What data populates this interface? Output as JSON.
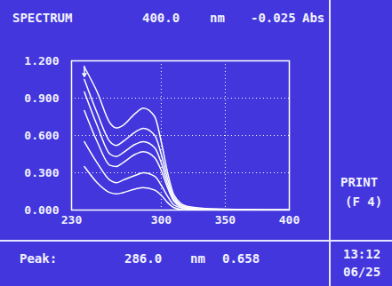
{
  "chart_data": {
    "type": "line",
    "title": "SPECTRUM",
    "x": [
      240,
      250,
      260,
      265,
      270,
      280,
      286,
      295,
      300,
      305,
      310,
      320,
      340,
      400
    ],
    "series": [
      {
        "color": "#ffffff",
        "values": [
          1.15,
          0.95,
          0.7,
          0.66,
          0.68,
          0.78,
          0.82,
          0.75,
          0.55,
          0.3,
          0.12,
          0.03,
          0.01,
          0.0
        ]
      },
      {
        "color": "#ffffff",
        "values": [
          1.05,
          0.78,
          0.55,
          0.52,
          0.55,
          0.63,
          0.658,
          0.6,
          0.45,
          0.25,
          0.1,
          0.02,
          0.005,
          0.0
        ]
      },
      {
        "color": "#ffffff",
        "values": [
          0.95,
          0.68,
          0.45,
          0.43,
          0.46,
          0.53,
          0.55,
          0.5,
          0.38,
          0.21,
          0.08,
          0.02,
          0.0,
          0.0
        ]
      },
      {
        "color": "#ffffff",
        "values": [
          0.8,
          0.55,
          0.36,
          0.35,
          0.38,
          0.45,
          0.47,
          0.42,
          0.32,
          0.18,
          0.07,
          0.01,
          0.0,
          0.0
        ]
      },
      {
        "color": "#ffffff",
        "values": [
          0.55,
          0.38,
          0.24,
          0.22,
          0.24,
          0.28,
          0.3,
          0.27,
          0.2,
          0.11,
          0.04,
          0.01,
          0.0,
          0.0
        ]
      },
      {
        "color": "#ffffff",
        "values": [
          0.35,
          0.22,
          0.14,
          0.13,
          0.14,
          0.17,
          0.18,
          0.16,
          0.12,
          0.06,
          0.02,
          0.0,
          0.0,
          0.0
        ]
      }
    ],
    "xlim": [
      230,
      400
    ],
    "xticks": [
      230,
      300,
      350,
      400
    ],
    "ylim": [
      0,
      1.2
    ],
    "yticks": [
      {
        "value": 0,
        "label": "0.000"
      },
      {
        "value": 0.3,
        "label": "0.300"
      },
      {
        "value": 0.6,
        "label": "0.600"
      },
      {
        "value": 0.9,
        "label": "0.900"
      },
      {
        "value": 1.2,
        "label": "1.200"
      }
    ],
    "grid": true
  },
  "header": {
    "wavelength": "400.0",
    "wavelength_unit": "nm",
    "reading": "-0.025",
    "reading_unit": "Abs"
  },
  "side_panel": [
    "PRINT",
    "(F 4)"
  ],
  "footer": {
    "label": "Peak:",
    "wavelength": "286.0",
    "wavelength_unit": "nm",
    "value": "0.658",
    "time": "13:12",
    "date": "06/25"
  }
}
